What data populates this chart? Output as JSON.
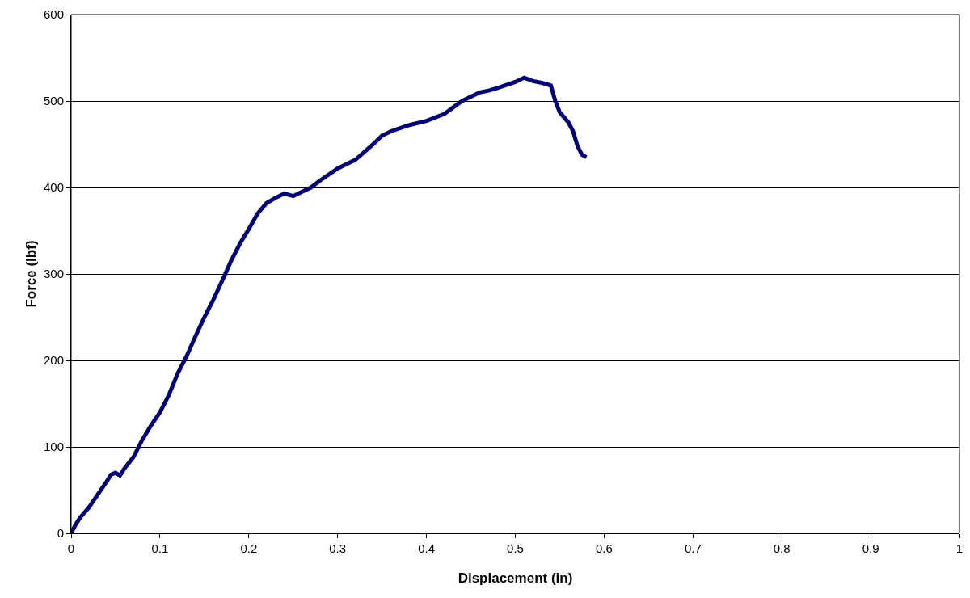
{
  "chart_data": {
    "type": "line",
    "xlabel": "Displacement (in)",
    "ylabel": "Force (lbf)",
    "x": [
      0,
      0.005,
      0.01,
      0.02,
      0.03,
      0.04,
      0.045,
      0.05,
      0.055,
      0.06,
      0.07,
      0.08,
      0.09,
      0.1,
      0.11,
      0.12,
      0.13,
      0.14,
      0.15,
      0.16,
      0.17,
      0.18,
      0.19,
      0.2,
      0.21,
      0.22,
      0.23,
      0.24,
      0.25,
      0.26,
      0.27,
      0.28,
      0.29,
      0.3,
      0.32,
      0.34,
      0.35,
      0.36,
      0.38,
      0.4,
      0.42,
      0.44,
      0.46,
      0.47,
      0.48,
      0.5,
      0.51,
      0.52,
      0.53,
      0.54,
      0.545,
      0.55,
      0.56,
      0.565,
      0.57,
      0.575,
      0.58
    ],
    "series": [
      {
        "color": "#000080",
        "values": [
          0,
          10,
          18,
          30,
          45,
          60,
          68,
          70,
          67,
          75,
          88,
          108,
          125,
          140,
          160,
          185,
          205,
          228,
          250,
          270,
          292,
          315,
          335,
          352,
          370,
          382,
          388,
          393,
          390,
          395,
          400,
          408,
          415,
          422,
          432,
          450,
          460,
          465,
          472,
          477,
          485,
          500,
          510,
          512,
          515,
          522,
          527,
          523,
          521,
          518,
          500,
          487,
          475,
          465,
          448,
          438,
          435
        ]
      }
    ],
    "xlim": [
      0,
      1
    ],
    "xticks": [
      0,
      0.1,
      0.2,
      0.3,
      0.4,
      0.5,
      0.6,
      0.7,
      0.8,
      0.9,
      1
    ],
    "ylim": [
      0,
      600
    ],
    "yticks": [
      0,
      100,
      200,
      300,
      400,
      500,
      600
    ],
    "grid": "y",
    "line_style": "solid"
  }
}
